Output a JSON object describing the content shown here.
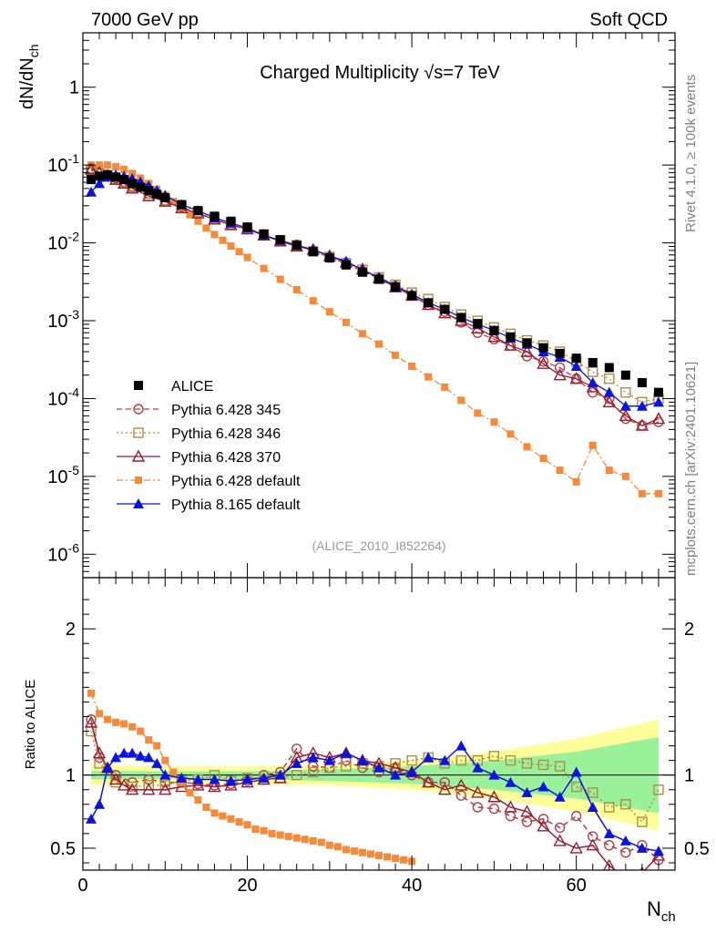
{
  "header": {
    "energy_label": "7000 GeV pp",
    "category_label": "Soft QCD",
    "side_label_top": "Rivet 4.1.0, ≥ 100k events",
    "side_label_bottom": "mcplots.cern.ch [arXiv:2401.10621]",
    "analysis_id": "(ALICE_2010_I852264)"
  },
  "chart_data": [
    {
      "type": "scatter",
      "title": "Charged Multiplicity √s=7 TeV",
      "ylabel": "dN/dNch",
      "xlabel": "Nch",
      "xlim": [
        0,
        72
      ],
      "ylim": [
        5e-07,
        5
      ],
      "yscale": "log",
      "ytick_labels": [
        "1",
        "10^-1",
        "10^-2",
        "10^-3",
        "10^-4",
        "10^-5",
        "10^-6"
      ],
      "xtick_labels": [
        "0",
        "20",
        "40",
        "60"
      ],
      "legend": [
        "ALICE",
        "Pythia 6.428 345",
        "Pythia 6.428 346",
        "Pythia 6.428 370",
        "Pythia 6.428 default",
        "Pythia 8.165 default"
      ],
      "legend_position": "bottom-left",
      "series": [
        {
          "name": "ALICE",
          "color": "#000000",
          "marker": "square",
          "line": "none",
          "x": [
            1,
            2,
            3,
            4,
            5,
            6,
            7,
            8,
            9,
            10,
            12,
            14,
            16,
            18,
            20,
            22,
            24,
            26,
            28,
            30,
            32,
            34,
            36,
            38,
            40,
            42,
            44,
            46,
            48,
            50,
            52,
            54,
            56,
            58,
            60,
            62,
            64,
            66,
            68,
            70
          ],
          "values": [
            0.065,
            0.072,
            0.075,
            0.07,
            0.065,
            0.058,
            0.052,
            0.047,
            0.042,
            0.038,
            0.031,
            0.026,
            0.022,
            0.019,
            0.016,
            0.013,
            0.011,
            0.0093,
            0.0077,
            0.0064,
            0.0052,
            0.0042,
            0.0034,
            0.0027,
            0.0021,
            0.0017,
            0.0014,
            0.0011,
            0.00092,
            0.00075,
            0.00062,
            0.00052,
            0.00045,
            0.00038,
            0.00033,
            0.00029,
            0.00025,
            0.0002,
            0.00016,
            0.00012
          ]
        },
        {
          "name": "Pythia 6.428 345",
          "color": "#b0404a",
          "marker": "open-circle",
          "line": "dashed",
          "x": [
            1,
            2,
            3,
            4,
            5,
            6,
            8,
            10,
            12,
            14,
            16,
            18,
            20,
            22,
            24,
            26,
            28,
            30,
            32,
            34,
            36,
            38,
            40,
            42,
            44,
            46,
            48,
            50,
            52,
            54,
            56,
            58,
            60,
            62,
            64,
            66,
            68,
            70
          ],
          "values": [
            0.09,
            0.08,
            0.075,
            0.068,
            0.061,
            0.053,
            0.043,
            0.035,
            0.029,
            0.024,
            0.02,
            0.017,
            0.015,
            0.0125,
            0.0105,
            0.0095,
            0.0078,
            0.0065,
            0.0054,
            0.0043,
            0.0035,
            0.0028,
            0.0021,
            0.0016,
            0.0013,
            0.00095,
            0.0007,
            0.00058,
            0.00048,
            0.00035,
            0.0003,
            0.00025,
            0.00018,
            0.00012,
            0.0001,
            5.5e-05,
            4.5e-05,
            5e-05
          ]
        },
        {
          "name": "Pythia 6.428 346",
          "color": "#b08c44",
          "marker": "open-square",
          "line": "dotted",
          "x": [
            1,
            2,
            3,
            4,
            5,
            6,
            8,
            10,
            12,
            14,
            16,
            18,
            20,
            22,
            24,
            26,
            28,
            30,
            32,
            34,
            36,
            38,
            40,
            42,
            44,
            46,
            48,
            50,
            52,
            54,
            56,
            58,
            60,
            62,
            64,
            66,
            68,
            70
          ],
          "values": [
            0.085,
            0.078,
            0.072,
            0.066,
            0.06,
            0.052,
            0.043,
            0.035,
            0.03,
            0.025,
            0.021,
            0.018,
            0.0155,
            0.0128,
            0.0108,
            0.0093,
            0.0078,
            0.0066,
            0.0055,
            0.0045,
            0.0036,
            0.0029,
            0.0023,
            0.0019,
            0.0015,
            0.0012,
            0.001,
            0.00082,
            0.00068,
            0.00056,
            0.00048,
            0.0004,
            0.0003,
            0.00022,
            0.00018,
            0.00012,
            9e-05,
            0.0001
          ]
        },
        {
          "name": "Pythia 6.428 370",
          "color": "#9b1c2c",
          "marker": "open-triangle",
          "line": "solid",
          "x": [
            1,
            2,
            3,
            4,
            5,
            6,
            8,
            10,
            12,
            14,
            16,
            18,
            20,
            22,
            24,
            26,
            28,
            30,
            32,
            34,
            36,
            38,
            40,
            42,
            44,
            46,
            48,
            50,
            52,
            54,
            56,
            58,
            60,
            62,
            64,
            66,
            68,
            70
          ],
          "values": [
            0.088,
            0.08,
            0.073,
            0.065,
            0.058,
            0.05,
            0.04,
            0.034,
            0.028,
            0.024,
            0.02,
            0.017,
            0.015,
            0.0125,
            0.0105,
            0.009,
            0.0082,
            0.0068,
            0.0056,
            0.0046,
            0.0035,
            0.0027,
            0.0021,
            0.0016,
            0.00125,
            0.001,
            0.0008,
            0.00062,
            0.00048,
            0.0004,
            0.00028,
            0.0002,
            0.00018,
            0.00014,
            9e-05,
            6e-05,
            4.5e-05,
            5.5e-05
          ]
        },
        {
          "name": "Pythia 6.428 default",
          "color": "#f58a3a",
          "marker": "filled-square-small",
          "line": "dashdot",
          "x": [
            1,
            2,
            3,
            4,
            5,
            6,
            7,
            8,
            9,
            10,
            11,
            12,
            13,
            14,
            15,
            16,
            17,
            18,
            19,
            20,
            22,
            24,
            26,
            28,
            30,
            32,
            34,
            36,
            38,
            40,
            42,
            44,
            46,
            48,
            50,
            52,
            54,
            56,
            58,
            60,
            62,
            64,
            66,
            68,
            70
          ],
          "values": [
            0.1,
            0.1,
            0.1,
            0.095,
            0.088,
            0.078,
            0.068,
            0.058,
            0.049,
            0.041,
            0.034,
            0.028,
            0.023,
            0.019,
            0.0155,
            0.0128,
            0.0108,
            0.0091,
            0.0077,
            0.0065,
            0.0047,
            0.0034,
            0.0025,
            0.0018,
            0.0013,
            0.00095,
            0.00068,
            0.0005,
            0.00036,
            0.00026,
            0.00019,
            0.00014,
            9.5e-05,
            6.5e-05,
            5e-05,
            3.5e-05,
            2.4e-05,
            1.7e-05,
            1.2e-05,
            8.5e-06,
            2.5e-05,
            1.2e-05,
            1e-05,
            6e-06,
            6e-06
          ]
        },
        {
          "name": "Pythia 8.165 default",
          "color": "#0a14e0",
          "marker": "filled-triangle",
          "line": "solid",
          "x": [
            1,
            2,
            3,
            4,
            5,
            6,
            7,
            8,
            9,
            10,
            12,
            14,
            16,
            18,
            20,
            22,
            24,
            26,
            28,
            30,
            32,
            34,
            36,
            38,
            40,
            42,
            44,
            46,
            48,
            50,
            52,
            54,
            56,
            58,
            60,
            62,
            64,
            66,
            68,
            70
          ],
          "values": [
            0.045,
            0.058,
            0.07,
            0.075,
            0.072,
            0.067,
            0.061,
            0.054,
            0.047,
            0.041,
            0.031,
            0.026,
            0.021,
            0.018,
            0.0155,
            0.0125,
            0.0108,
            0.0093,
            0.0082,
            0.0068,
            0.0058,
            0.0045,
            0.0036,
            0.0028,
            0.0022,
            0.0017,
            0.0014,
            0.0011,
            0.0009,
            0.00075,
            0.0006,
            0.0005,
            0.0004,
            0.00034,
            0.00026,
            0.00016,
            0.00012,
            8e-05,
            8e-05,
            9e-05
          ]
        }
      ]
    },
    {
      "type": "line",
      "ylabel": "Ratio to ALICE",
      "xlim": [
        0,
        72
      ],
      "ylim": [
        0.35,
        2.35
      ],
      "ytick_labels": [
        "0.5",
        "1",
        "2"
      ],
      "reference_line": 1,
      "uncertainty_bands": {
        "x": [
          1,
          10,
          20,
          30,
          40,
          50,
          60,
          70
        ],
        "inner": [
          0.03,
          0.025,
          0.025,
          0.04,
          0.06,
          0.1,
          0.16,
          0.26
        ],
        "outer": [
          0.07,
          0.06,
          0.06,
          0.07,
          0.1,
          0.16,
          0.25,
          0.38
        ],
        "inner_color": "#99f299",
        "outer_color": "#ffff99"
      },
      "series": [
        {
          "name": "Pythia 6.428 345",
          "color": "#b0404a",
          "x": [
            1,
            2,
            4,
            6,
            8,
            10,
            12,
            14,
            16,
            18,
            20,
            22,
            24,
            26,
            28,
            30,
            32,
            34,
            36,
            38,
            40,
            42,
            44,
            46,
            48,
            50,
            52,
            54,
            56,
            58,
            60,
            62,
            64,
            66,
            68,
            70
          ],
          "values": [
            1.38,
            1.12,
            1.0,
            0.95,
            0.97,
            0.95,
            0.95,
            0.94,
            0.93,
            0.94,
            0.96,
            1.0,
            1.02,
            1.18,
            1.06,
            1.05,
            1.1,
            1.05,
            1.02,
            1.05,
            1.0,
            0.95,
            0.95,
            0.86,
            0.78,
            0.77,
            0.72,
            0.68,
            0.7,
            0.64,
            0.72,
            0.58,
            0.52,
            0.47,
            0.52,
            0.42
          ]
        },
        {
          "name": "Pythia 6.428 346",
          "color": "#b08c44",
          "x": [
            1,
            2,
            4,
            6,
            8,
            10,
            12,
            14,
            16,
            18,
            20,
            22,
            24,
            26,
            28,
            30,
            32,
            34,
            36,
            38,
            40,
            42,
            44,
            46,
            48,
            50,
            52,
            54,
            56,
            58,
            60,
            62,
            64,
            66,
            68,
            70
          ],
          "values": [
            1.3,
            1.08,
            0.95,
            0.92,
            0.93,
            0.93,
            0.96,
            0.97,
            1.0,
            0.96,
            0.98,
            0.97,
            0.98,
            1.0,
            1.02,
            1.05,
            1.06,
            1.08,
            1.06,
            1.08,
            1.1,
            1.12,
            1.08,
            1.1,
            1.1,
            1.13,
            1.1,
            1.08,
            1.07,
            1.06,
            0.92,
            0.88,
            0.78,
            0.8,
            0.68,
            0.9
          ]
        },
        {
          "name": "Pythia 6.428 370",
          "color": "#9b1c2c",
          "x": [
            1,
            2,
            3,
            4,
            5,
            6,
            8,
            10,
            12,
            14,
            16,
            18,
            20,
            22,
            24,
            26,
            28,
            30,
            32,
            34,
            36,
            38,
            40,
            42,
            44,
            46,
            48,
            50,
            52,
            54,
            56,
            58,
            60,
            62,
            64,
            66,
            68,
            70
          ],
          "values": [
            1.36,
            1.15,
            1.05,
            0.97,
            0.93,
            0.9,
            0.9,
            0.9,
            0.92,
            0.93,
            0.92,
            0.93,
            0.95,
            0.97,
            0.98,
            1.12,
            1.15,
            1.12,
            1.15,
            1.1,
            1.08,
            1.05,
            1.02,
            0.95,
            0.9,
            0.93,
            0.88,
            0.85,
            0.78,
            0.75,
            0.65,
            0.55,
            0.5,
            0.52,
            0.38,
            0.3,
            0.33,
            0.45
          ]
        },
        {
          "name": "Pythia 6.428 default",
          "color": "#f58a3a",
          "x": [
            1,
            2,
            3,
            4,
            5,
            6,
            7,
            8,
            9,
            10,
            11,
            12,
            13,
            14,
            15,
            16,
            17,
            18,
            19,
            20,
            21,
            22,
            23,
            24,
            25,
            26,
            27,
            28,
            29,
            30,
            31,
            32,
            33,
            34,
            35,
            36,
            37,
            38,
            39,
            40
          ],
          "values": [
            1.56,
            1.42,
            1.38,
            1.36,
            1.35,
            1.33,
            1.3,
            1.24,
            1.2,
            1.1,
            1.02,
            0.95,
            0.88,
            0.83,
            0.78,
            0.74,
            0.72,
            0.7,
            0.68,
            0.66,
            0.63,
            0.62,
            0.6,
            0.59,
            0.58,
            0.57,
            0.56,
            0.55,
            0.54,
            0.52,
            0.51,
            0.49,
            0.48,
            0.47,
            0.46,
            0.45,
            0.44,
            0.43,
            0.42,
            0.41
          ]
        },
        {
          "name": "Pythia 8.165 default",
          "color": "#0a14e0",
          "x": [
            1,
            2,
            3,
            4,
            5,
            6,
            7,
            8,
            9,
            10,
            12,
            14,
            16,
            18,
            20,
            22,
            24,
            26,
            28,
            30,
            32,
            34,
            36,
            38,
            40,
            42,
            44,
            46,
            48,
            50,
            52,
            54,
            56,
            58,
            60,
            62,
            64,
            66,
            68,
            70
          ],
          "values": [
            0.7,
            0.8,
            1.05,
            1.12,
            1.15,
            1.15,
            1.13,
            1.12,
            1.08,
            1.0,
            0.98,
            0.97,
            0.97,
            0.96,
            0.97,
            0.98,
            1.0,
            1.08,
            1.12,
            1.1,
            1.15,
            1.1,
            1.05,
            1.0,
            1.02,
            1.12,
            1.1,
            1.2,
            1.05,
            1.0,
            0.95,
            0.88,
            0.92,
            0.85,
            1.02,
            0.78,
            0.6,
            0.55,
            0.5,
            0.48
          ]
        }
      ]
    }
  ]
}
